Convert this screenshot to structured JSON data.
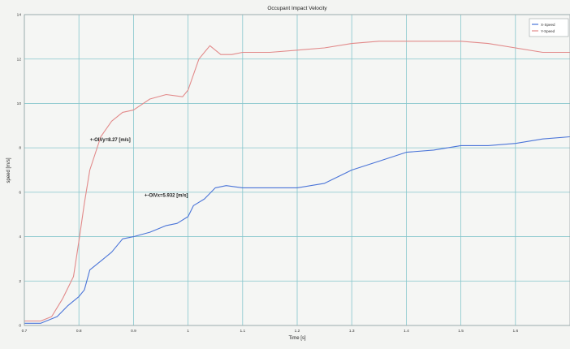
{
  "chart_data": {
    "type": "line",
    "title": "Occupant Impact Velocity",
    "xlabel": "Time [s]",
    "ylabel": "speed [m/s]",
    "xlim": [
      0.7,
      1.7
    ],
    "ylim": [
      0,
      14
    ],
    "xticks": [
      "0.7",
      "0.8",
      "0.9",
      "1",
      "1.1",
      "1.2",
      "1.3",
      "1.4",
      "1.5",
      "1.6"
    ],
    "yticks": [
      "0",
      "2",
      "4",
      "6",
      "8",
      "10",
      "12",
      "14"
    ],
    "grid": true,
    "legend_position": "top-right",
    "colors": {
      "x_speed": "#4a74d8",
      "y_speed": "#e28a8a",
      "grid": "#86c6cc",
      "text": "#222222"
    },
    "series": [
      {
        "name": "X-Speed",
        "x": [
          0.7,
          0.73,
          0.76,
          0.78,
          0.8,
          0.81,
          0.82,
          0.84,
          0.86,
          0.88,
          0.9,
          0.93,
          0.96,
          0.98,
          1.0,
          1.01,
          1.03,
          1.05,
          1.07,
          1.1,
          1.15,
          1.2,
          1.25,
          1.3,
          1.35,
          1.4,
          1.45,
          1.5,
          1.55,
          1.6,
          1.65,
          1.7
        ],
        "values": [
          0.1,
          0.1,
          0.4,
          0.9,
          1.3,
          1.6,
          2.5,
          2.9,
          3.3,
          3.9,
          4.0,
          4.2,
          4.5,
          4.6,
          4.9,
          5.4,
          5.7,
          6.2,
          6.3,
          6.2,
          6.2,
          6.2,
          6.4,
          7.0,
          7.4,
          7.8,
          7.9,
          8.1,
          8.1,
          8.2,
          8.4,
          8.5
        ]
      },
      {
        "name": "Y-Speed",
        "x": [
          0.7,
          0.73,
          0.75,
          0.77,
          0.79,
          0.8,
          0.81,
          0.82,
          0.84,
          0.86,
          0.88,
          0.9,
          0.93,
          0.96,
          0.99,
          1.0,
          1.02,
          1.04,
          1.06,
          1.08,
          1.1,
          1.15,
          1.2,
          1.25,
          1.3,
          1.35,
          1.4,
          1.45,
          1.5,
          1.55,
          1.6,
          1.65,
          1.7
        ],
        "values": [
          0.2,
          0.2,
          0.4,
          1.2,
          2.2,
          3.8,
          5.5,
          7.0,
          8.5,
          9.2,
          9.6,
          9.7,
          10.2,
          10.4,
          10.3,
          10.6,
          12.0,
          12.6,
          12.2,
          12.2,
          12.3,
          12.3,
          12.4,
          12.5,
          12.7,
          12.8,
          12.8,
          12.8,
          12.8,
          12.7,
          12.5,
          12.3,
          12.3
        ]
      }
    ],
    "annotations": [
      {
        "text": "+-OIVy=8.27 [m/s]",
        "x": 0.82,
        "y": 8.3
      },
      {
        "text": "+-OIVx=5.932 [m/s]",
        "x": 0.92,
        "y": 5.8
      }
    ]
  }
}
